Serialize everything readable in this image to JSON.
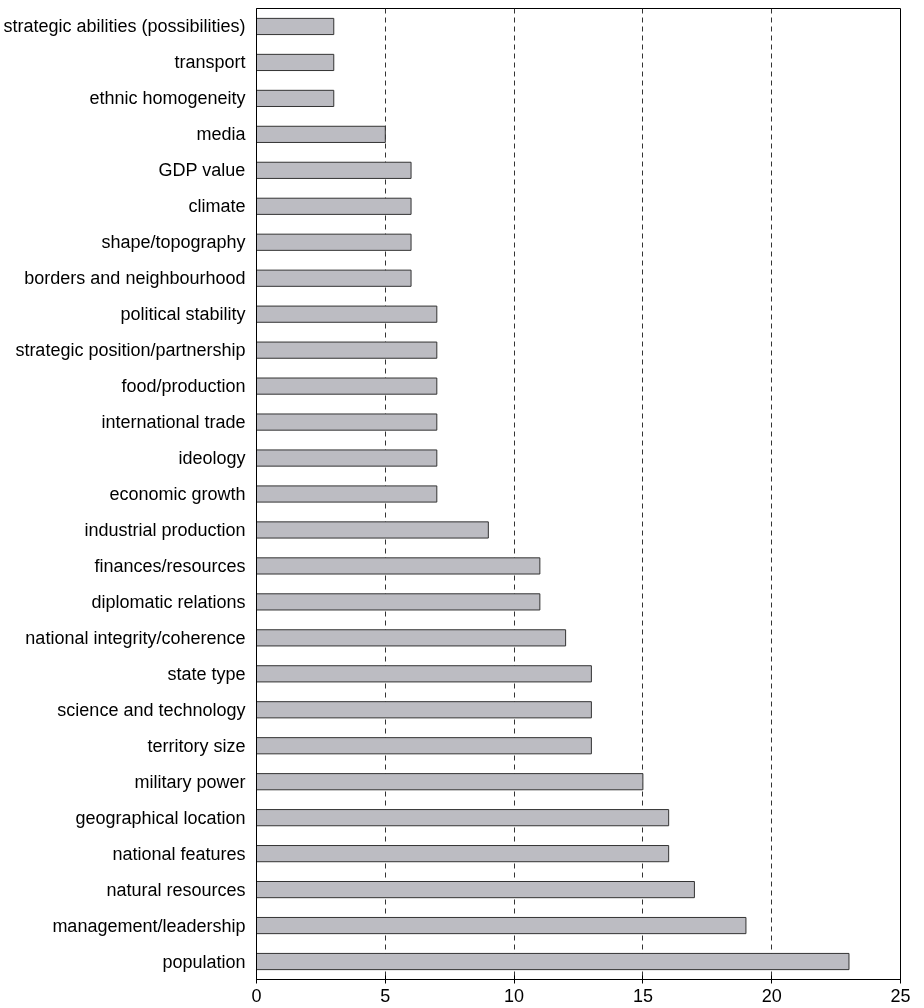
{
  "chart_data": {
    "type": "bar",
    "orientation": "horizontal",
    "categories": [
      "strategic abilities (possibilities)",
      "transport",
      "ethnic homogeneity",
      "media",
      "GDP value",
      "climate",
      "shape/topography",
      "borders and neighbourhood",
      "political stability",
      "strategic position/partnership",
      "food/production",
      "international trade",
      "ideology",
      "economic growth",
      "industrial production",
      "finances/resources",
      "diplomatic relations",
      "national integrity/coherence",
      "state type",
      "science and technology",
      "territory size",
      "military power",
      "geographical location",
      "national features",
      "natural resources",
      "management/leadership",
      "population"
    ],
    "values": [
      3,
      3,
      3,
      5,
      6,
      6,
      6,
      6,
      7,
      7,
      7,
      7,
      7,
      7,
      9,
      11,
      11,
      12,
      13,
      13,
      13,
      15,
      16,
      16,
      17,
      19,
      23
    ],
    "color": "#bcbcc2",
    "xlim": [
      0,
      25
    ],
    "xticks": [
      0,
      5,
      10,
      15,
      20,
      25
    ],
    "grid": "x"
  }
}
